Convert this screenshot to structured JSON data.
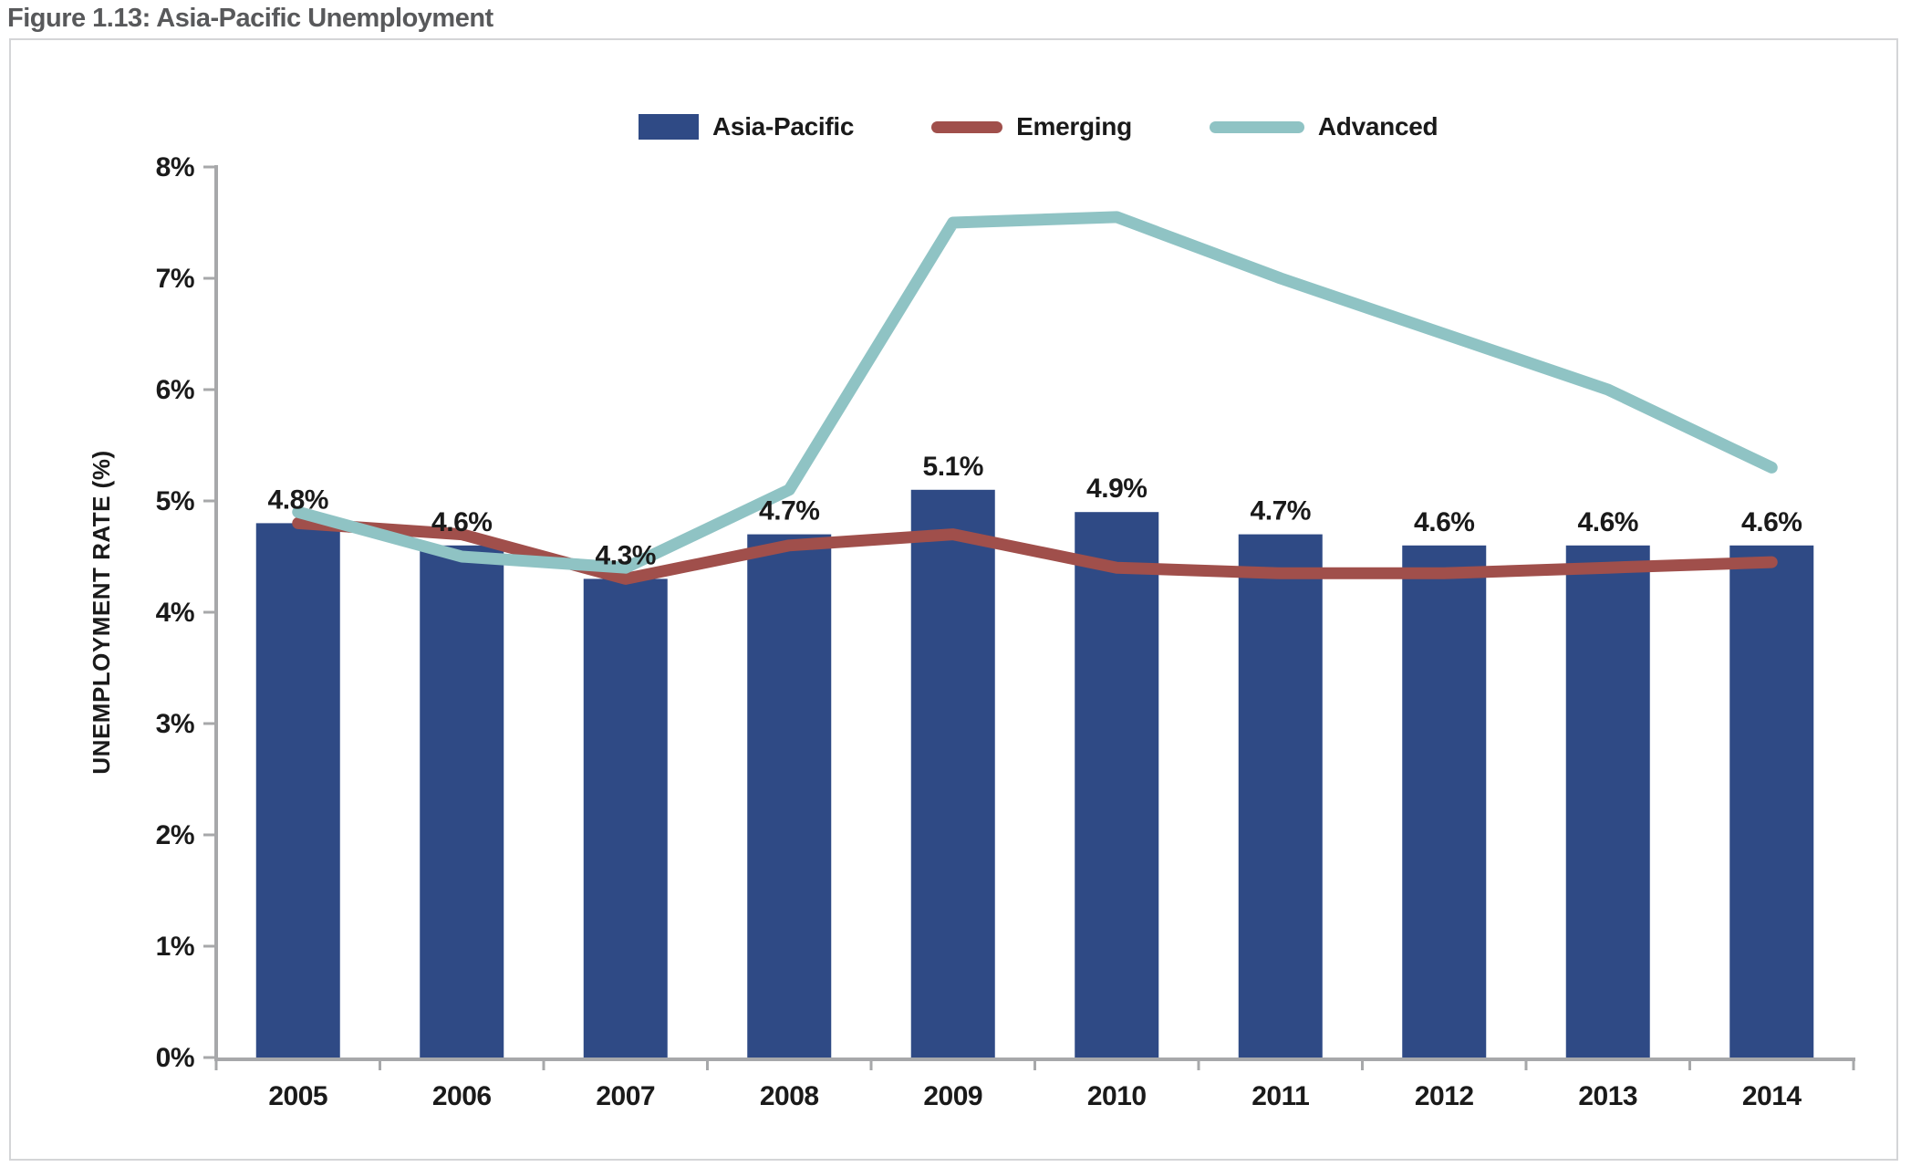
{
  "figure": {
    "title": "Figure 1.13: Asia-Pacific Unemployment"
  },
  "legend": [
    {
      "label": "Asia-Pacific",
      "type": "bar",
      "color": "#2F4A85"
    },
    {
      "label": "Emerging",
      "type": "line",
      "color": "#A04F4B"
    },
    {
      "label": "Advanced",
      "type": "line",
      "color": "#8FC3C4"
    }
  ],
  "chart_data": {
    "type": "bar+line",
    "title": "Figure 1.13: Asia-Pacific Unemployment",
    "categories": [
      "2005",
      "2006",
      "2007",
      "2008",
      "2009",
      "2010",
      "2011",
      "2012",
      "2013",
      "2014"
    ],
    "series": [
      {
        "name": "Asia-Pacific",
        "type": "bar",
        "color": "#2F4A85",
        "values": [
          4.8,
          4.6,
          4.3,
          4.7,
          5.1,
          4.9,
          4.7,
          4.6,
          4.6,
          4.6
        ],
        "labels": [
          "4.8%",
          "4.6%",
          "4.3%",
          "4.7%",
          "5.1%",
          "4.9%",
          "4.7%",
          "4.6%",
          "4.6%",
          "4.6%"
        ]
      },
      {
        "name": "Emerging",
        "type": "line",
        "color": "#A04F4B",
        "values": [
          4.8,
          4.7,
          4.3,
          4.6,
          4.7,
          4.4,
          4.35,
          4.35,
          4.4,
          4.45
        ]
      },
      {
        "name": "Advanced",
        "type": "line",
        "color": "#8FC3C4",
        "values": [
          4.9,
          4.5,
          4.4,
          5.1,
          7.5,
          7.55,
          7.0,
          6.5,
          6.0,
          5.3
        ]
      }
    ],
    "xlabel": "",
    "ylabel": "UNEMPLOYMENT RATE (%)",
    "ylim": [
      0,
      8
    ],
    "yticks": [
      "0%",
      "1%",
      "2%",
      "3%",
      "4%",
      "5%",
      "6%",
      "7%",
      "8%"
    ],
    "grid": false,
    "legend_position": "top-center"
  },
  "colors": {
    "bar_navy": "#2F4A85",
    "line_emerging": "#A04F4B",
    "line_advanced": "#8FC3C4",
    "axis_gray": "#A7A8AA",
    "title_gray": "#58595B",
    "text_dark": "#1A1A1A",
    "panel_border": "#D4D5D7"
  }
}
